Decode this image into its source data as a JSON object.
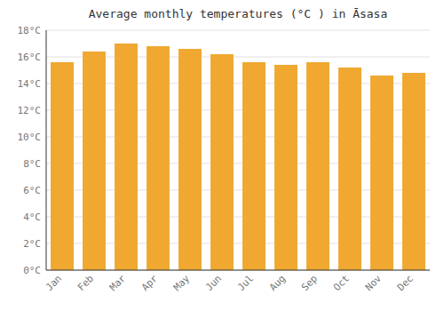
{
  "chart_data": {
    "type": "bar",
    "title": "Average monthly temperatures (°C ) in Āsasa",
    "categories": [
      "Jan",
      "Feb",
      "Mar",
      "Apr",
      "May",
      "Jun",
      "Jul",
      "Aug",
      "Sep",
      "Oct",
      "Nov",
      "Dec"
    ],
    "values": [
      15.6,
      16.4,
      17.0,
      16.8,
      16.6,
      16.2,
      15.6,
      15.4,
      15.6,
      15.2,
      14.6,
      14.8
    ],
    "color": "#f0a830",
    "ylim": [
      0,
      18
    ],
    "yticks": [
      {
        "value": 0,
        "label": "0°C"
      },
      {
        "value": 2,
        "label": "2°C"
      },
      {
        "value": 4,
        "label": "4°C"
      },
      {
        "value": 6,
        "label": "6°C"
      },
      {
        "value": 8,
        "label": "8°C"
      },
      {
        "value": 10,
        "label": "10°C"
      },
      {
        "value": 12,
        "label": "12°C"
      },
      {
        "value": 14,
        "label": "14°C"
      },
      {
        "value": 16,
        "label": "16°C"
      },
      {
        "value": 18,
        "label": "18°C"
      }
    ],
    "grid": true
  }
}
